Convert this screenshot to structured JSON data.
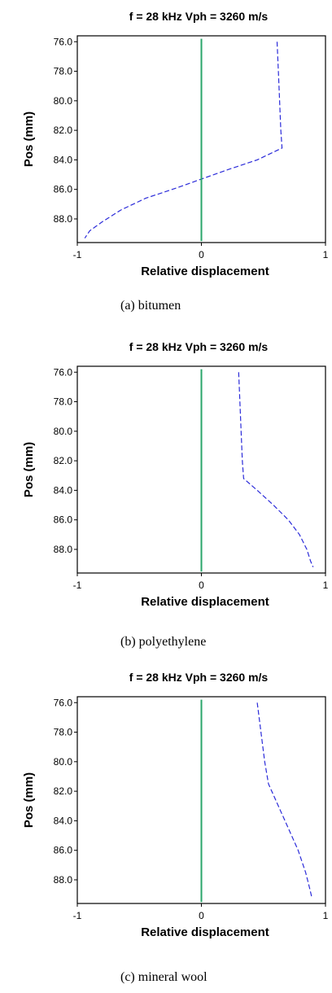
{
  "chart_data": [
    {
      "type": "line",
      "title": "f = 28 kHz  Vph = 3260 m/s",
      "xlabel": "Relative displacement",
      "ylabel": "Pos (mm)",
      "xlim": [
        -1,
        1
      ],
      "ylim": [
        75.6,
        89.6
      ],
      "y_inverted": true,
      "x_tick_labels": [
        "-1",
        "0",
        "1"
      ],
      "y_tick_labels": [
        "76.0",
        "78.0",
        "80.0",
        "82.0",
        "84.0",
        "86.0",
        "88.0"
      ],
      "y_ticks": [
        76,
        78,
        80,
        82,
        84,
        86,
        88
      ],
      "grid": false,
      "caption": "(a) bitumen",
      "series": [
        {
          "style": "dashed",
          "color": "#2b2bd9",
          "points": [
            [
              0.61,
              76.0
            ],
            [
              0.62,
              78.0
            ],
            [
              0.63,
              80.0
            ],
            [
              0.64,
              82.0
            ],
            [
              0.65,
              83.2
            ],
            [
              0.45,
              84.0
            ],
            [
              0.2,
              84.7
            ],
            [
              0.0,
              85.3
            ],
            [
              -0.2,
              85.9
            ],
            [
              -0.45,
              86.6
            ],
            [
              -0.65,
              87.4
            ],
            [
              -0.8,
              88.2
            ],
            [
              -0.9,
              88.8
            ],
            [
              -0.94,
              89.3
            ]
          ]
        },
        {
          "style": "solid",
          "color": "#2aa66a",
          "points": [
            [
              0.0,
              75.8
            ],
            [
              0.0,
              89.5
            ]
          ]
        }
      ]
    },
    {
      "type": "line",
      "title": "f = 28 kHz  Vph = 3260 m/s",
      "xlabel": "Relative displacement",
      "ylabel": "Pos (mm)",
      "xlim": [
        -1,
        1
      ],
      "ylim": [
        75.6,
        89.6
      ],
      "y_inverted": true,
      "x_tick_labels": [
        "-1",
        "0",
        "1"
      ],
      "y_tick_labels": [
        "76.0",
        "78.0",
        "80.0",
        "82.0",
        "84.0",
        "86.0",
        "88.0"
      ],
      "y_ticks": [
        76,
        78,
        80,
        82,
        84,
        86,
        88
      ],
      "grid": false,
      "caption": "(b) polyethylene",
      "series": [
        {
          "style": "dashed",
          "color": "#2b2bd9",
          "points": [
            [
              0.3,
              76.0
            ],
            [
              0.31,
              78.0
            ],
            [
              0.32,
              80.0
            ],
            [
              0.33,
              82.0
            ],
            [
              0.34,
              83.2
            ],
            [
              0.45,
              84.0
            ],
            [
              0.58,
              85.0
            ],
            [
              0.7,
              86.0
            ],
            [
              0.79,
              87.0
            ],
            [
              0.85,
              88.0
            ],
            [
              0.88,
              88.8
            ],
            [
              0.9,
              89.2
            ]
          ]
        },
        {
          "style": "solid",
          "color": "#2aa66a",
          "points": [
            [
              0.0,
              75.8
            ],
            [
              0.0,
              89.5
            ]
          ]
        }
      ]
    },
    {
      "type": "line",
      "title": "f = 28 kHz  Vph = 3260 m/s",
      "xlabel": "Relative displacement",
      "ylabel": "Pos (mm)",
      "xlim": [
        -1,
        1
      ],
      "ylim": [
        75.6,
        89.6
      ],
      "y_inverted": true,
      "x_tick_labels": [
        "-1",
        "0",
        "1"
      ],
      "y_tick_labels": [
        "76.0",
        "78.0",
        "80.0",
        "82.0",
        "84.0",
        "86.0",
        "88.0"
      ],
      "y_ticks": [
        76,
        78,
        80,
        82,
        84,
        86,
        88
      ],
      "grid": false,
      "caption": "(c) mineral wool",
      "series": [
        {
          "style": "dashed",
          "color": "#2b2bd9",
          "points": [
            [
              0.45,
              76.0
            ],
            [
              0.48,
              78.0
            ],
            [
              0.51,
              80.0
            ],
            [
              0.54,
              81.5
            ],
            [
              0.62,
              83.0
            ],
            [
              0.7,
              84.5
            ],
            [
              0.78,
              86.0
            ],
            [
              0.84,
              87.5
            ],
            [
              0.87,
              88.5
            ],
            [
              0.89,
              89.2
            ]
          ]
        },
        {
          "style": "solid",
          "color": "#2aa66a",
          "points": [
            [
              0.0,
              75.8
            ],
            [
              0.0,
              89.5
            ]
          ]
        }
      ]
    }
  ]
}
